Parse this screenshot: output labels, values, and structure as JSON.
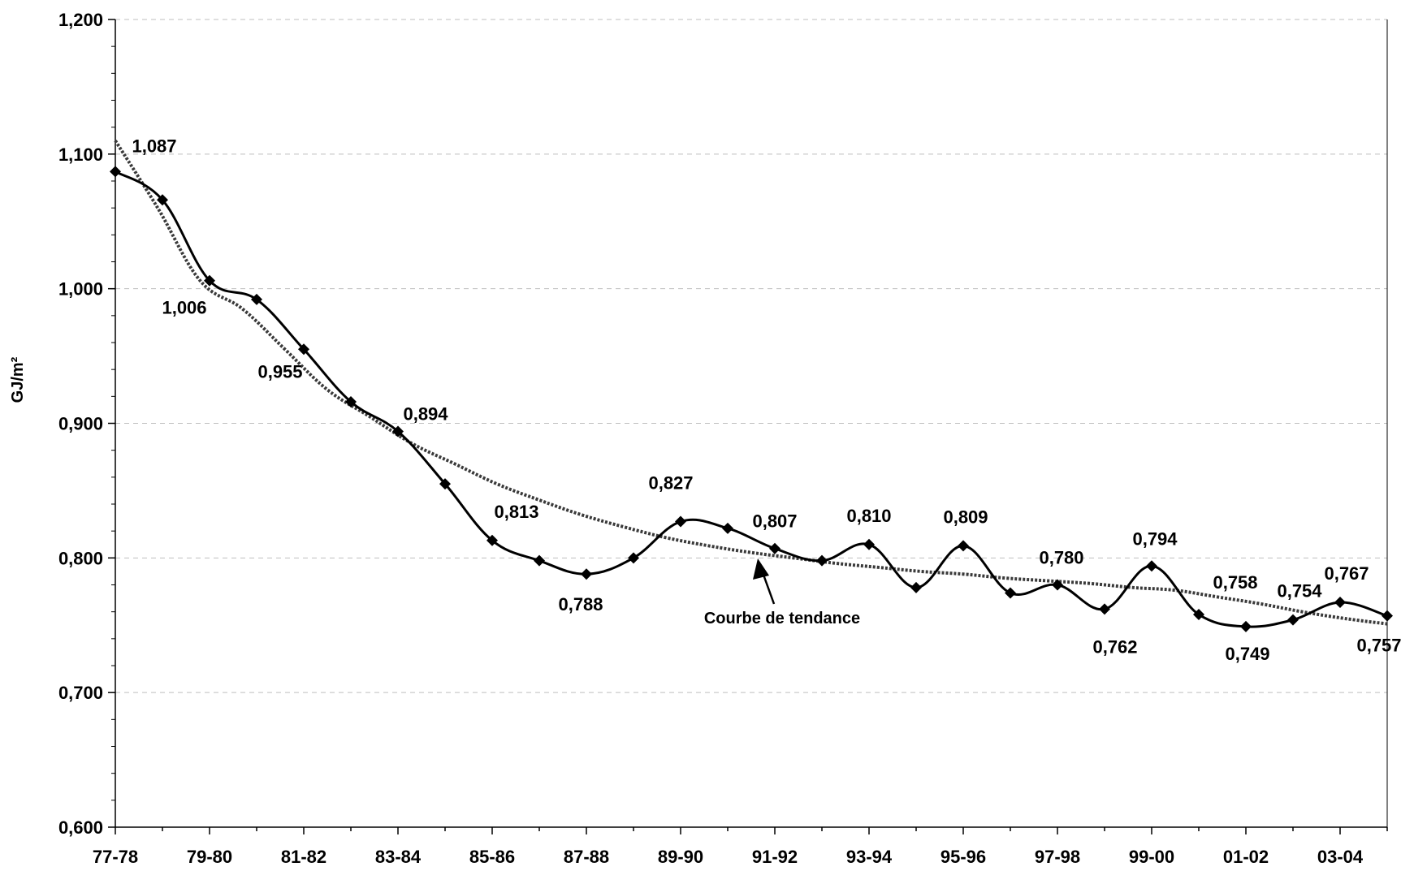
{
  "chart_data": {
    "type": "line",
    "ylabel": "GJ/m²",
    "xlabel": "",
    "title": "",
    "ylim": [
      0.6,
      1.2
    ],
    "yticks": [
      "0,600",
      "0,700",
      "0,800",
      "0,900",
      "1,000",
      "1,100",
      "1,200"
    ],
    "x_tick_labels": [
      "77-78",
      "79-80",
      "81-82",
      "83-84",
      "85-86",
      "87-88",
      "89-90",
      "91-92",
      "93-94",
      "95-96",
      "97-98",
      "99-00",
      "01-02",
      "03-04"
    ],
    "grid": "horizontal dashed",
    "series": [
      {
        "values": [
          1.087,
          1.066,
          1.006,
          0.992,
          0.955,
          0.916,
          0.894,
          0.855,
          0.813,
          0.798,
          0.788,
          0.8,
          0.827,
          0.822,
          0.807,
          0.798,
          0.81,
          0.778,
          0.809,
          0.774,
          0.78,
          0.762,
          0.794,
          0.758,
          0.749,
          0.754,
          0.767,
          0.757
        ]
      }
    ],
    "trend_values": [
      1.11,
      1.06,
      1.006,
      0.985,
      0.955,
      0.925,
      0.905,
      0.885,
      0.87,
      0.855,
      0.843,
      0.832,
      0.823,
      0.815,
      0.809,
      0.804,
      0.8,
      0.796,
      0.793,
      0.79,
      0.788,
      0.785,
      0.783,
      0.781,
      0.778,
      0.776,
      0.771,
      0.766,
      0.76,
      0.755,
      0.751
    ],
    "data_labels": [
      {
        "index": 0,
        "text": "1,087"
      },
      {
        "index": 2,
        "text": "1,006"
      },
      {
        "index": 4,
        "text": "0,955"
      },
      {
        "index": 6,
        "text": "0,894"
      },
      {
        "index": 8,
        "text": "0,813"
      },
      {
        "index": 10,
        "text": "0,788"
      },
      {
        "index": 12,
        "text": "0,827"
      },
      {
        "index": 14,
        "text": "0,807"
      },
      {
        "index": 16,
        "text": "0,810"
      },
      {
        "index": 18,
        "text": "0,809"
      },
      {
        "index": 20,
        "text": "0,780"
      },
      {
        "index": 21,
        "text": "0,762"
      },
      {
        "index": 22,
        "text": "0,794"
      },
      {
        "index": 23,
        "text": "0,758"
      },
      {
        "index": 24,
        "text": "0,749"
      },
      {
        "index": 25,
        "text": "0,754"
      },
      {
        "index": 26,
        "text": "0,767"
      },
      {
        "index": 27,
        "text": "0,757"
      }
    ],
    "annotation": "Courbe de tendance"
  }
}
